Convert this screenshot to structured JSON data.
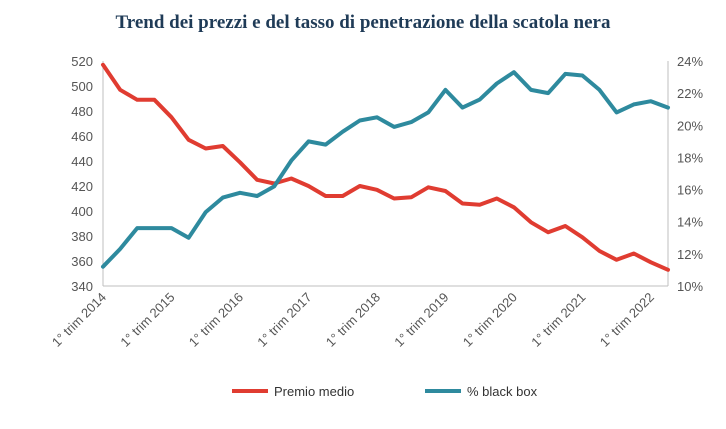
{
  "chart_data": {
    "type": "line",
    "title": "Trend dei prezzi e del tasso di penetrazione della scatola nera",
    "xlabel": "",
    "ylabel": "",
    "y2label": "",
    "x_tick_labels": [
      "1° trim 2014",
      "1° trim 2015",
      "1° trim 2016",
      "1° trim 2017",
      "1° trim 2018",
      "1° trim 2019",
      "1° trim 2020",
      "1° trim 2021",
      "1° trim 2022"
    ],
    "ylim": [
      340,
      520
    ],
    "y_ticks": [
      340,
      360,
      380,
      400,
      420,
      440,
      460,
      480,
      500,
      520
    ],
    "y2lim": [
      10,
      24
    ],
    "y2_ticks": [
      10,
      12,
      14,
      16,
      18,
      20,
      22,
      24
    ],
    "y2_tick_labels": [
      "10%",
      "12%",
      "14%",
      "16%",
      "18%",
      "20%",
      "22%",
      "24%"
    ],
    "series": [
      {
        "name": "Premio medio",
        "axis": "left",
        "color": "#e03c31",
        "values": [
          517,
          497,
          489,
          489,
          475,
          457,
          450,
          452,
          439,
          425,
          422,
          426,
          420,
          412,
          412,
          420,
          417,
          410,
          411,
          419,
          416,
          406,
          405,
          410,
          403,
          391,
          383,
          388,
          379,
          368,
          361,
          366,
          359,
          353
        ]
      },
      {
        "name": "% black box",
        "axis": "right",
        "color": "#2e8a9e",
        "values": [
          11.2,
          12.3,
          13.6,
          13.6,
          13.6,
          13.0,
          14.6,
          15.5,
          15.8,
          15.6,
          16.2,
          17.8,
          19.0,
          18.8,
          19.6,
          20.3,
          20.5,
          19.9,
          20.2,
          20.8,
          22.2,
          21.1,
          21.6,
          22.6,
          23.3,
          22.2,
          22.0,
          23.2,
          23.1,
          22.2,
          20.8,
          21.3,
          21.5,
          21.1
        ]
      }
    ],
    "legend_position": "bottom-center"
  }
}
